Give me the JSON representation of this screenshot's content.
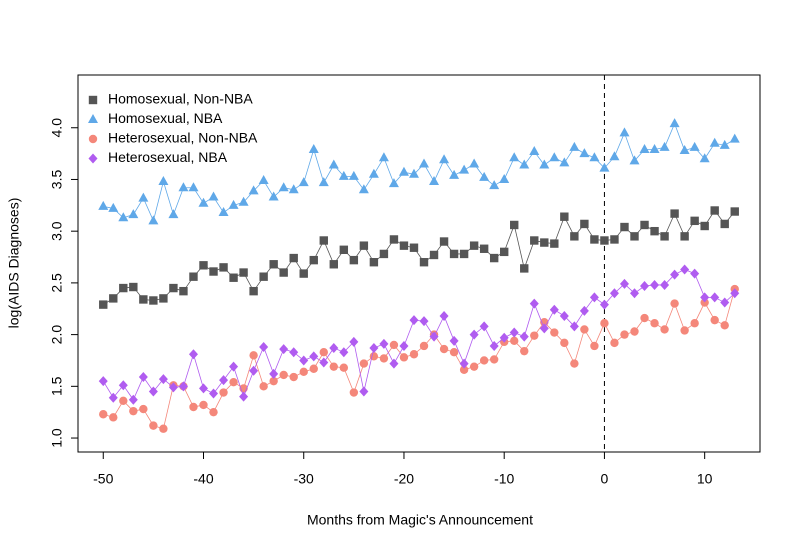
{
  "chart_data": {
    "type": "line",
    "xlabel": "Months from Magic's Announcement",
    "ylabel": "log(AIDS Diagnoses)",
    "x": [
      -50,
      -49,
      -48,
      -47,
      -46,
      -45,
      -44,
      -43,
      -42,
      -41,
      -40,
      -39,
      -38,
      -37,
      -36,
      -35,
      -34,
      -33,
      -32,
      -31,
      -30,
      -29,
      -28,
      -27,
      -26,
      -25,
      -24,
      -23,
      -22,
      -21,
      -20,
      -19,
      -18,
      -17,
      -16,
      -15,
      -14,
      -13,
      -12,
      -11,
      -10,
      -9,
      -8,
      -7,
      -6,
      -5,
      -4,
      -3,
      -2,
      -1,
      0,
      1,
      2,
      3,
      4,
      5,
      6,
      7,
      8,
      9,
      10,
      11,
      12,
      13
    ],
    "series": [
      {
        "name": "Homosexual, Non-NBA",
        "color": "#555555",
        "marker": "square",
        "values": [
          2.29,
          2.35,
          2.45,
          2.46,
          2.34,
          2.33,
          2.35,
          2.45,
          2.42,
          2.56,
          2.67,
          2.61,
          2.65,
          2.55,
          2.6,
          2.42,
          2.56,
          2.68,
          2.6,
          2.74,
          2.59,
          2.72,
          2.91,
          2.68,
          2.82,
          2.72,
          2.86,
          2.7,
          2.78,
          2.92,
          2.86,
          2.84,
          2.7,
          2.77,
          2.9,
          2.78,
          2.78,
          2.86,
          2.83,
          2.74,
          2.8,
          3.06,
          2.64,
          2.91,
          2.89,
          2.88,
          3.14,
          2.95,
          3.07,
          2.92,
          2.91,
          2.92,
          3.04,
          2.95,
          3.06,
          3.0,
          2.95,
          3.17,
          2.95,
          3.1,
          3.05,
          3.2,
          3.07,
          3.19
        ]
      },
      {
        "name": "Homosexual, NBA",
        "color": "#5fa8e8",
        "marker": "triangle",
        "values": [
          3.24,
          3.22,
          3.13,
          3.16,
          3.32,
          3.1,
          3.48,
          3.16,
          3.42,
          3.42,
          3.27,
          3.33,
          3.18,
          3.25,
          3.28,
          3.39,
          3.49,
          3.33,
          3.42,
          3.4,
          3.47,
          3.79,
          3.47,
          3.64,
          3.53,
          3.53,
          3.4,
          3.55,
          3.71,
          3.46,
          3.57,
          3.55,
          3.65,
          3.48,
          3.69,
          3.54,
          3.59,
          3.65,
          3.52,
          3.44,
          3.5,
          3.71,
          3.64,
          3.77,
          3.64,
          3.71,
          3.66,
          3.81,
          3.75,
          3.71,
          3.61,
          3.72,
          3.95,
          3.68,
          3.79,
          3.79,
          3.81,
          4.04,
          3.78,
          3.81,
          3.7,
          3.85,
          3.83,
          3.89
        ]
      },
      {
        "name": "Heterosexual, Non-NBA",
        "color": "#f4877a",
        "marker": "circle",
        "values": [
          1.23,
          1.2,
          1.36,
          1.26,
          1.28,
          1.12,
          1.09,
          1.51,
          1.5,
          1.3,
          1.32,
          1.25,
          1.44,
          1.54,
          1.48,
          1.8,
          1.5,
          1.55,
          1.61,
          1.59,
          1.64,
          1.67,
          1.83,
          1.69,
          1.68,
          1.44,
          1.72,
          1.79,
          1.77,
          1.9,
          1.78,
          1.81,
          1.89,
          2.0,
          1.86,
          1.83,
          1.66,
          1.69,
          1.75,
          1.76,
          1.93,
          1.94,
          1.84,
          1.99,
          2.12,
          2.02,
          1.92,
          1.72,
          2.05,
          1.89,
          2.11,
          1.92,
          2.0,
          2.03,
          2.16,
          2.11,
          2.05,
          2.3,
          2.04,
          2.11,
          2.31,
          2.14,
          2.09,
          2.44
        ]
      },
      {
        "name": "Heterosexual, NBA",
        "color": "#b05cf0",
        "marker": "diamond",
        "values": [
          1.55,
          1.39,
          1.51,
          1.37,
          1.59,
          1.45,
          1.57,
          1.49,
          1.5,
          1.81,
          1.48,
          1.43,
          1.56,
          1.69,
          1.4,
          1.65,
          1.88,
          1.62,
          1.86,
          1.83,
          1.75,
          1.79,
          1.73,
          1.87,
          1.83,
          1.93,
          1.45,
          1.87,
          1.91,
          1.72,
          1.89,
          2.14,
          2.13,
          1.98,
          2.18,
          1.94,
          1.72,
          2.0,
          2.08,
          1.89,
          1.97,
          2.02,
          1.98,
          2.3,
          2.06,
          2.24,
          2.18,
          2.08,
          2.23,
          2.36,
          2.29,
          2.4,
          2.49,
          2.4,
          2.47,
          2.48,
          2.48,
          2.58,
          2.63,
          2.59,
          2.36,
          2.36,
          2.31,
          2.4
        ]
      }
    ],
    "xlim": [
      -52.52,
      15.52
    ],
    "ylim": [
      0.865,
      4.51
    ],
    "xticks": [
      -50,
      -40,
      -30,
      -20,
      -10,
      0,
      10
    ],
    "yticks": [
      {
        "value": 1,
        "label": "1.0"
      },
      {
        "value": 1.5,
        "label": "1.5"
      },
      {
        "value": 2,
        "label": "2.0"
      },
      {
        "value": 2.5,
        "label": "2.5"
      },
      {
        "value": 3,
        "label": "3.0"
      },
      {
        "value": 3.5,
        "label": "3.5"
      },
      {
        "value": 4,
        "label": "4.0"
      }
    ],
    "vline": 0,
    "legend": "top-left",
    "grid": false
  }
}
